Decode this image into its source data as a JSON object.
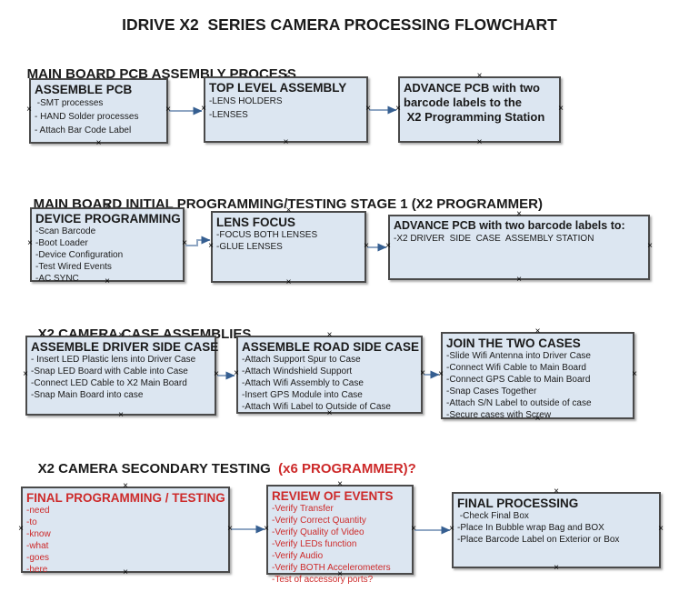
{
  "title": "IDRIVE X2  SERIES CAMERA PROCESSING FLOWCHART",
  "colors": {
    "box_fill": "#dce6f1",
    "box_border": "#4a4a4a",
    "text": "#1a1a1a",
    "red": "#cd2a2a",
    "arrow_line": "#8fa6c3",
    "arrow_head": "#365f91"
  },
  "icons": {
    "connection_point": "×"
  },
  "sections": [
    {
      "heading": "MAIN BOARD PCB ASSEMBLY PROCESS",
      "boxes": [
        {
          "title": "ASSEMBLE PCB",
          "items": [
            " -SMT processes",
            "- HAND Solder processes",
            "- Attach Bar Code Label"
          ]
        },
        {
          "title": "TOP LEVEL ASSEMBLY",
          "items": [
            "-LENS HOLDERS",
            "-LENSES"
          ]
        },
        {
          "title": "ADVANCE PCB with two\nbarcode labels to the\n X2 Programming Station",
          "items": []
        }
      ]
    },
    {
      "heading": "MAIN BOARD INITIAL PROGRAMMING/TESTING STAGE 1 (X2 PROGRAMMER)",
      "boxes": [
        {
          "title": "DEVICE PROGRAMMING",
          "items": [
            "-Scan Barcode",
            "-Boot Loader",
            "-Device Configuration",
            "-Test Wired Events",
            "-AC SYNC"
          ]
        },
        {
          "title": "LENS FOCUS",
          "items": [
            "-FOCUS BOTH LENSES",
            "-GLUE LENSES"
          ]
        },
        {
          "title": "ADVANCE PCB with two barcode labels to:",
          "items": [
            "-X2 DRIVER  SIDE  CASE  ASSEMBLY STATION"
          ]
        }
      ]
    },
    {
      "heading": "X2 CAMERA CASE ASSEMBLIES",
      "boxes": [
        {
          "title": "ASSEMBLE DRIVER SIDE CASE",
          "items": [
            "- Insert LED Plastic lens into Driver Case",
            "-Snap LED Board with Cable into Case",
            "-Connect LED Cable to X2 Main Board",
            "-Snap Main Board into case"
          ]
        },
        {
          "title": "ASSEMBLE ROAD SIDE CASE",
          "items": [
            "-Attach Support Spur to Case",
            "-Attach Windshield Support",
            "-Attach Wifi Assembly to Case",
            "-Insert GPS Module into Case",
            "-Attach Wifi Label to Outside of Case"
          ]
        },
        {
          "title": "JOIN THE TWO CASES",
          "items": [
            "-Slide Wifi Antenna into Driver Case",
            "-Connect Wifi Cable to Main Board",
            "-Connect GPS Cable to Main Board",
            "-Snap Cases Together",
            "-Attach S/N Label to outside of case",
            "-Secure cases with Screw"
          ]
        }
      ]
    },
    {
      "heading": "X2 CAMERA SECONDARY TESTING",
      "heading_suffix": "  (x6 PROGRAMMER)?",
      "boxes": [
        {
          "title": "FINAL PROGRAMMING / TESTING",
          "items": [
            "-need",
            "-to",
            "-know",
            "-what",
            "-goes",
            "-here"
          ]
        },
        {
          "title": "REVIEW OF EVENTS",
          "items": [
            "-Verify Transfer",
            "-Verify Correct Quantity",
            "-Verify Quality of Video",
            "-Verify LEDs function",
            "-Verify Audio",
            "-Verify BOTH Accelerometers",
            "-Test of accessory ports?"
          ]
        },
        {
          "title": "FINAL PROCESSING",
          "items": [
            " -Check Final Box",
            "-Place In Bubble wrap Bag and BOX",
            "-Place Barcode Label on Exterior or Box"
          ]
        }
      ]
    }
  ]
}
